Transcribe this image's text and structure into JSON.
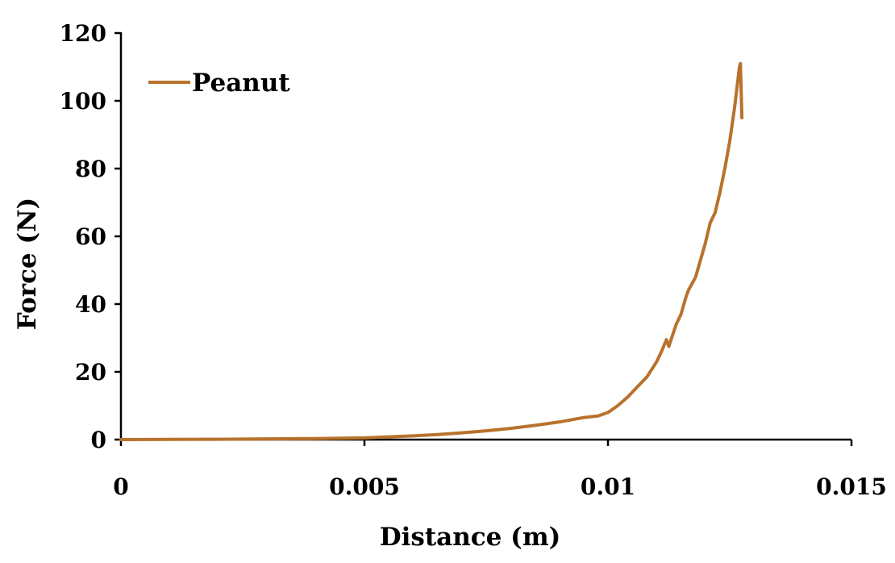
{
  "chart_data": {
    "type": "line",
    "title": "",
    "xlabel": "Distance (m)",
    "ylabel": "Force (N)",
    "xlim": [
      0,
      0.015
    ],
    "ylim": [
      0,
      120
    ],
    "xticks": [
      0,
      0.005,
      0.01,
      0.015
    ],
    "xtick_labels": [
      "0",
      "0.005",
      "0.01",
      "0.015"
    ],
    "yticks": [
      0,
      20,
      40,
      60,
      80,
      100,
      120
    ],
    "ytick_labels": [
      "0",
      "20",
      "40",
      "60",
      "80",
      "100",
      "120"
    ],
    "grid": false,
    "legend": "top-left",
    "series": [
      {
        "name": "Peanut",
        "color": "#B8722C",
        "x": [
          0,
          0.001,
          0.002,
          0.003,
          0.004,
          0.005,
          0.0055,
          0.006,
          0.0065,
          0.007,
          0.0075,
          0.008,
          0.0085,
          0.009,
          0.0095,
          0.0098,
          0.01,
          0.0102,
          0.0104,
          0.0106,
          0.0108,
          0.011,
          0.0111,
          0.0112,
          0.01125,
          0.0114,
          0.0115,
          0.0116,
          0.01165,
          0.0118,
          0.0119,
          0.012,
          0.0121,
          0.0122,
          0.0123,
          0.0124,
          0.0125,
          0.0126,
          0.01265,
          0.0127,
          0.01272,
          0.01275
        ],
        "y": [
          0,
          0.05,
          0.1,
          0.2,
          0.3,
          0.5,
          0.8,
          1.1,
          1.5,
          2.0,
          2.6,
          3.3,
          4.2,
          5.2,
          6.5,
          7.0,
          8.0,
          10.0,
          12.5,
          15.5,
          18.5,
          23.0,
          26.0,
          29.5,
          27.5,
          34.0,
          37.0,
          42.0,
          44.0,
          48.0,
          53.0,
          58.0,
          64.0,
          67.0,
          73.0,
          80.0,
          88.0,
          98.0,
          104.0,
          110.0,
          111.0,
          95.0
        ]
      }
    ]
  }
}
